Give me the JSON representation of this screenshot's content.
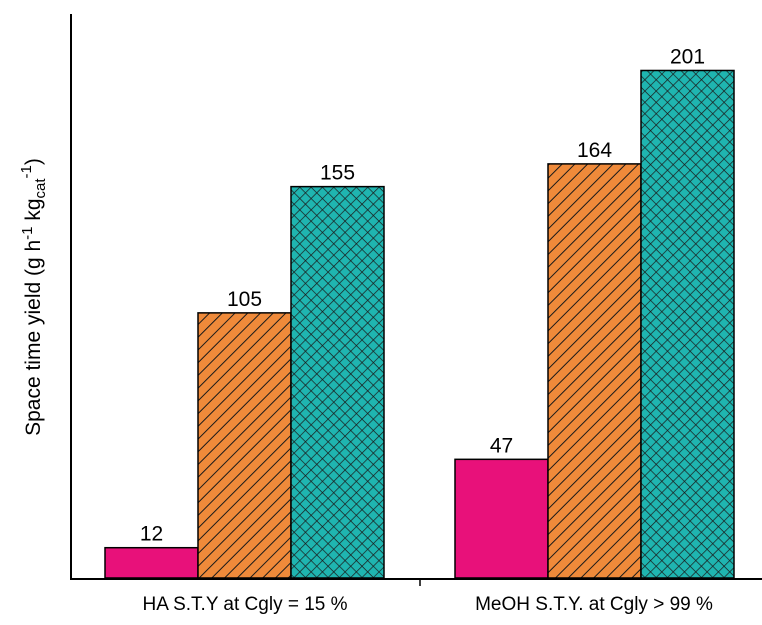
{
  "chart_data": {
    "type": "bar",
    "categories": [
      "HA S.T.Y at Cgly = 15 %",
      "MeOH S.T.Y. at Cgly > 99 %"
    ],
    "series": [
      {
        "values": [
          12,
          47
        ],
        "color": "#e8117a",
        "pattern": "solid"
      },
      {
        "values": [
          105,
          164
        ],
        "color": "#ef8a3a",
        "pattern": "diagonal-hatch"
      },
      {
        "values": [
          155,
          201
        ],
        "color": "#1fb5b0",
        "pattern": "crosshatch"
      }
    ],
    "value_labels": [
      [
        "12",
        "47"
      ],
      [
        "105",
        "164"
      ],
      [
        "155",
        "201"
      ]
    ],
    "ylabel": {
      "main": "Space time yield (g h",
      "sup1": "-1",
      "mid": " kg",
      "sub": "cat",
      "sup2": "-1",
      "end": ")"
    },
    "ylim": [
      0,
      220
    ],
    "grid": false,
    "legend": "none"
  }
}
